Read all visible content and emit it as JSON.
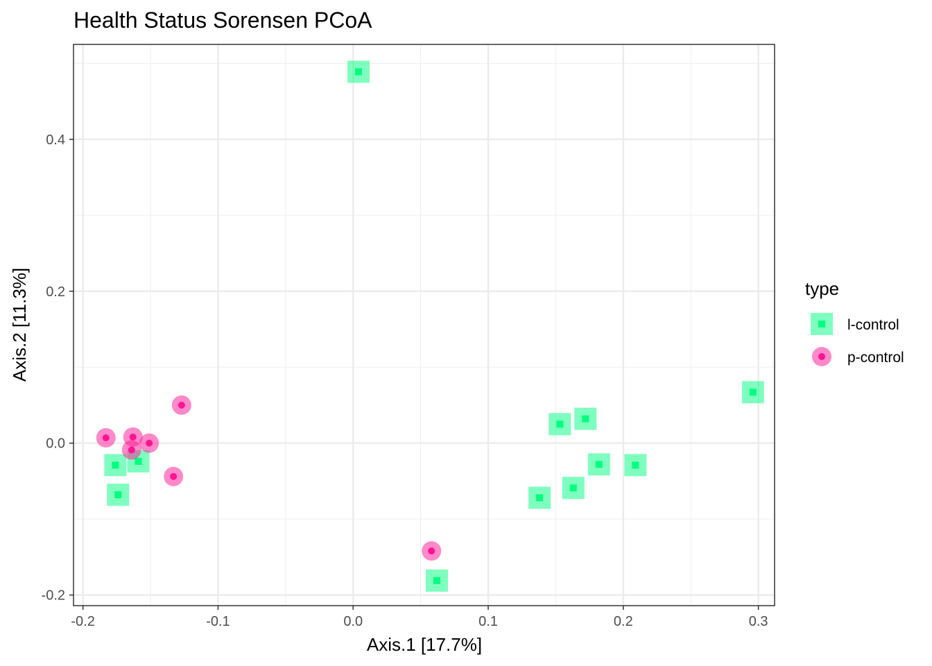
{
  "chart_data": {
    "type": "scatter",
    "title": "Health Status Sorensen PCoA",
    "xlabel": "Axis.1   [17.7%]",
    "ylabel": "Axis.2   [11.3%]",
    "xlim": [
      -0.207,
      0.312
    ],
    "ylim": [
      -0.214,
      0.525
    ],
    "x_ticks": [
      -0.2,
      -0.1,
      0.0,
      0.1,
      0.2,
      0.3
    ],
    "x_tick_labels": [
      "-0.2",
      "-0.1",
      "0.0",
      "0.1",
      "0.2",
      "0.3"
    ],
    "y_ticks": [
      -0.2,
      0.0,
      0.2,
      0.4
    ],
    "y_tick_labels": [
      "-0.2",
      "0.0",
      "0.2",
      "0.4"
    ],
    "grid": true,
    "legend": {
      "title": "type",
      "position": "right",
      "entries": [
        "l-control",
        "p-control"
      ]
    },
    "series": [
      {
        "name": "l-control",
        "marker": "square",
        "color": "#00ff7f",
        "points": [
          [
            0.004,
            0.489
          ],
          [
            0.296,
            0.067
          ],
          [
            0.172,
            0.032
          ],
          [
            0.153,
            0.025
          ],
          [
            0.182,
            -0.028
          ],
          [
            0.209,
            -0.029
          ],
          [
            0.163,
            -0.059
          ],
          [
            0.138,
            -0.072
          ],
          [
            0.062,
            -0.181
          ],
          [
            -0.176,
            -0.029
          ],
          [
            -0.159,
            -0.024
          ],
          [
            -0.174,
            -0.068
          ]
        ]
      },
      {
        "name": "p-control",
        "marker": "circle",
        "color": "#ff1493",
        "points": [
          [
            -0.183,
            0.007
          ],
          [
            -0.163,
            0.008
          ],
          [
            -0.151,
            0.0
          ],
          [
            -0.164,
            -0.009
          ],
          [
            -0.127,
            0.05
          ],
          [
            -0.133,
            -0.044
          ],
          [
            0.058,
            -0.142
          ]
        ]
      }
    ]
  }
}
